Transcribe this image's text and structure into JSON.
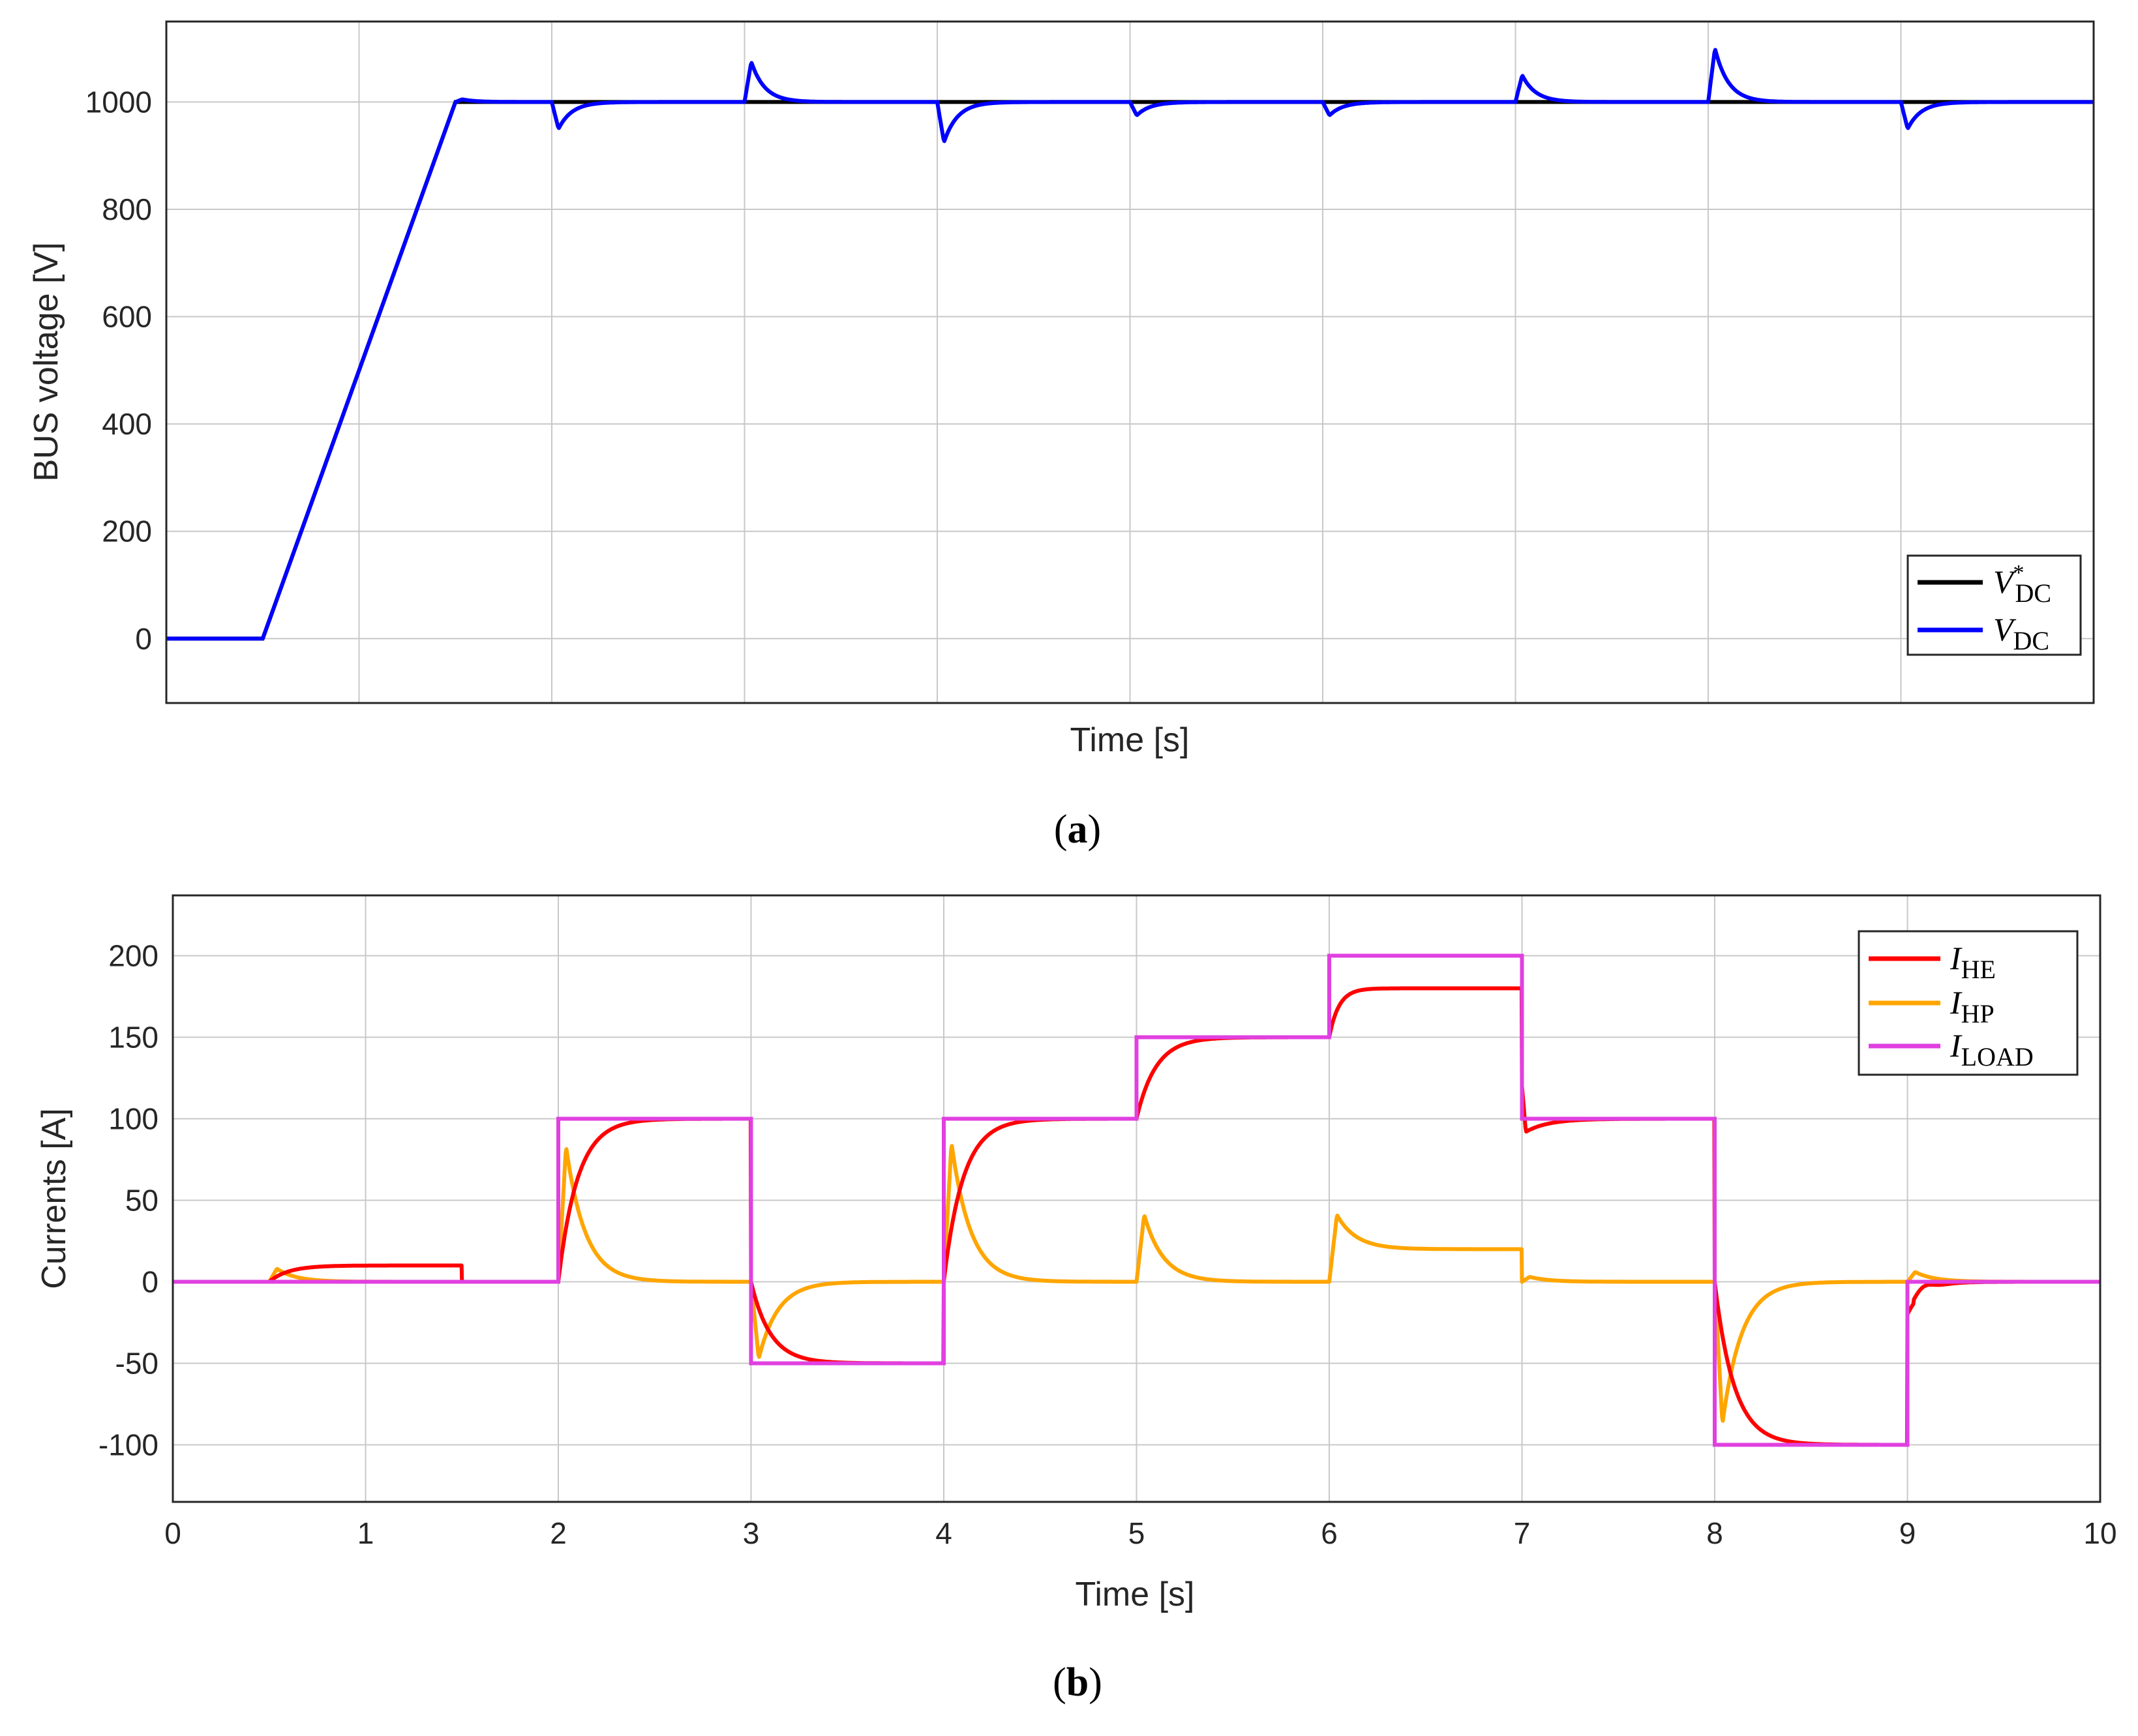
{
  "panel_a": {
    "label_open": "(",
    "label_letter": "a",
    "label_close": ")",
    "ylabel": "BUS voltage [V]",
    "xlabel": "Time [s]",
    "legend": [
      {
        "symbol": "V",
        "sub": "DC",
        "sup": "*"
      },
      {
        "symbol": "V",
        "sub": "DC",
        "sup": ""
      }
    ]
  },
  "panel_b": {
    "label_open": "(",
    "label_letter": "b",
    "label_close": ")",
    "ylabel": "Currents [A]",
    "xlabel": "Time [s]",
    "legend": [
      {
        "symbol": "I",
        "sub": "HE"
      },
      {
        "symbol": "I",
        "sub": "HP"
      },
      {
        "symbol": "I",
        "sub": "LOAD"
      }
    ]
  },
  "colors": {
    "vdc_ref": "#000000",
    "vdc": "#0000ff",
    "i_he": "#ff0000",
    "i_hp": "#ffa500",
    "i_load": "#e040e0",
    "grid": "#c8c8c8",
    "axis": "#262626"
  },
  "chart_data": [
    {
      "type": "line",
      "ylabel": "BUS voltage [V]",
      "xlabel": "Time [s]",
      "xlim": [
        0,
        10
      ],
      "ylim": [
        -120,
        1150
      ],
      "xticks": [
        0,
        1,
        2,
        3,
        4,
        5,
        6,
        7,
        8,
        9,
        10
      ],
      "x_tick_labels_shown": false,
      "yticks": [
        0,
        200,
        400,
        600,
        800,
        1000
      ],
      "grid": true,
      "legend_position": "bottom-right",
      "series": [
        {
          "name": "V*DC",
          "color": "#000000",
          "x": [
            0,
            0.5,
            1.5,
            10
          ],
          "y": [
            0,
            0,
            1000,
            1000
          ]
        },
        {
          "name": "VDC",
          "color": "#0000ff",
          "ramp": {
            "x": [
              0,
              0.5,
              1.5
            ],
            "y": [
              0,
              0,
              1000
            ]
          },
          "steady": 1000,
          "transients": [
            {
              "t": 1.5,
              "peak": 1005
            },
            {
              "t": 2,
              "peak": 950
            },
            {
              "t": 3,
              "peak": 1075
            },
            {
              "t": 4,
              "peak": 925
            },
            {
              "t": 5,
              "peak": 975
            },
            {
              "t": 6,
              "peak": 975
            },
            {
              "t": 7,
              "peak": 1050
            },
            {
              "t": 8,
              "peak": 1100
            },
            {
              "t": 9,
              "peak": 950
            }
          ]
        }
      ]
    },
    {
      "type": "line",
      "ylabel": "Currents [A]",
      "xlabel": "Time [s]",
      "xlim": [
        0,
        10
      ],
      "ylim": [
        -135,
        237
      ],
      "xticks": [
        0,
        1,
        2,
        3,
        4,
        5,
        6,
        7,
        8,
        9,
        10
      ],
      "yticks": [
        -100,
        -50,
        0,
        50,
        100,
        150,
        200
      ],
      "grid": true,
      "legend_position": "top-right",
      "series": [
        {
          "name": "IHE",
          "color": "#ff0000",
          "segments": [
            {
              "t0": 0,
              "t1": 0.5,
              "start": 0,
              "target": 0,
              "tau": 0.1
            },
            {
              "t0": 0.5,
              "t1": 1.5,
              "start": 0,
              "target": 10,
              "tau": 0.1
            },
            {
              "t0": 1.5,
              "t1": 2,
              "start": 0,
              "target": 0,
              "tau": 0.1
            },
            {
              "t0": 2,
              "t1": 3,
              "start": 0,
              "target": 100,
              "tau": 0.1
            },
            {
              "t0": 3,
              "t1": 4,
              "start": 0,
              "target": -50,
              "tau": 0.1
            },
            {
              "t0": 4,
              "t1": 5,
              "start": 0,
              "target": 100,
              "tau": 0.1
            },
            {
              "t0": 5,
              "t1": 6,
              "start": 100,
              "target": 150,
              "tau": 0.1
            },
            {
              "t0": 6,
              "t1": 7,
              "start": 150,
              "target": 180,
              "tau": 0.05
            },
            {
              "t0": 7,
              "t1": 8,
              "start": 120,
              "target": 100,
              "tau": 0.1,
              "dip": 92
            },
            {
              "t0": 8,
              "t1": 9,
              "start": 0,
              "target": -100,
              "tau": 0.1
            },
            {
              "t0": 9,
              "t1": 10,
              "start": -20,
              "target": 0,
              "tau": 0.08,
              "overshoot": 4
            }
          ]
        },
        {
          "name": "IHP",
          "color": "#ffa500",
          "spikes": [
            {
              "t": 0.5,
              "peak": 8,
              "level": 0
            },
            {
              "t": 2,
              "peak": 83,
              "level": 0
            },
            {
              "t": 3,
              "peak": -47,
              "level": 0
            },
            {
              "t": 4,
              "peak": 85,
              "level": 0
            },
            {
              "t": 5,
              "peak": 41,
              "level": 0
            },
            {
              "t": 6,
              "peak": 41,
              "level": 20
            },
            {
              "t": 7,
              "peak": 3,
              "level": 0
            },
            {
              "t": 8,
              "peak": -87,
              "level": 0
            },
            {
              "t": 9,
              "peak": 6,
              "level": 0
            }
          ]
        },
        {
          "name": "ILOAD",
          "color": "#e040e0",
          "x": [
            0,
            2,
            2,
            3,
            3,
            4,
            4,
            5,
            5,
            6,
            6,
            7,
            7,
            8,
            8,
            9,
            9,
            10
          ],
          "y": [
            0,
            0,
            100,
            100,
            -50,
            -50,
            100,
            100,
            150,
            150,
            200,
            200,
            100,
            100,
            -100,
            -100,
            0,
            0
          ]
        }
      ]
    }
  ]
}
